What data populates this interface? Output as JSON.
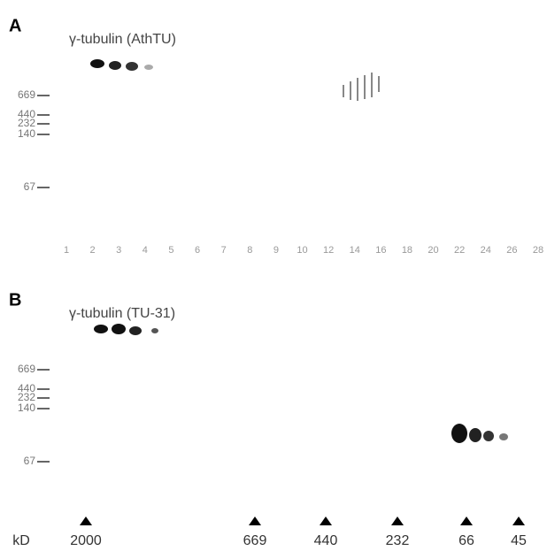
{
  "panels": [
    {
      "label": "A",
      "antibody": "γ-tubulin (AthTU)",
      "markers": [
        "669",
        "440",
        "232",
        "140",
        "67"
      ]
    },
    {
      "label": "B",
      "antibody": "γ-tubulin (TU-31)",
      "markers": [
        "669",
        "440",
        "232",
        "140",
        "67"
      ]
    }
  ],
  "lanes": [
    "1",
    "2",
    "3",
    "4",
    "5",
    "6",
    "7",
    "8",
    "9",
    "10",
    "12",
    "14",
    "16",
    "18",
    "20",
    "22",
    "24",
    "26",
    "28"
  ],
  "standards": {
    "unit": "kD",
    "sizes": [
      "2000",
      "669",
      "440",
      "232",
      "66",
      "45"
    ]
  }
}
